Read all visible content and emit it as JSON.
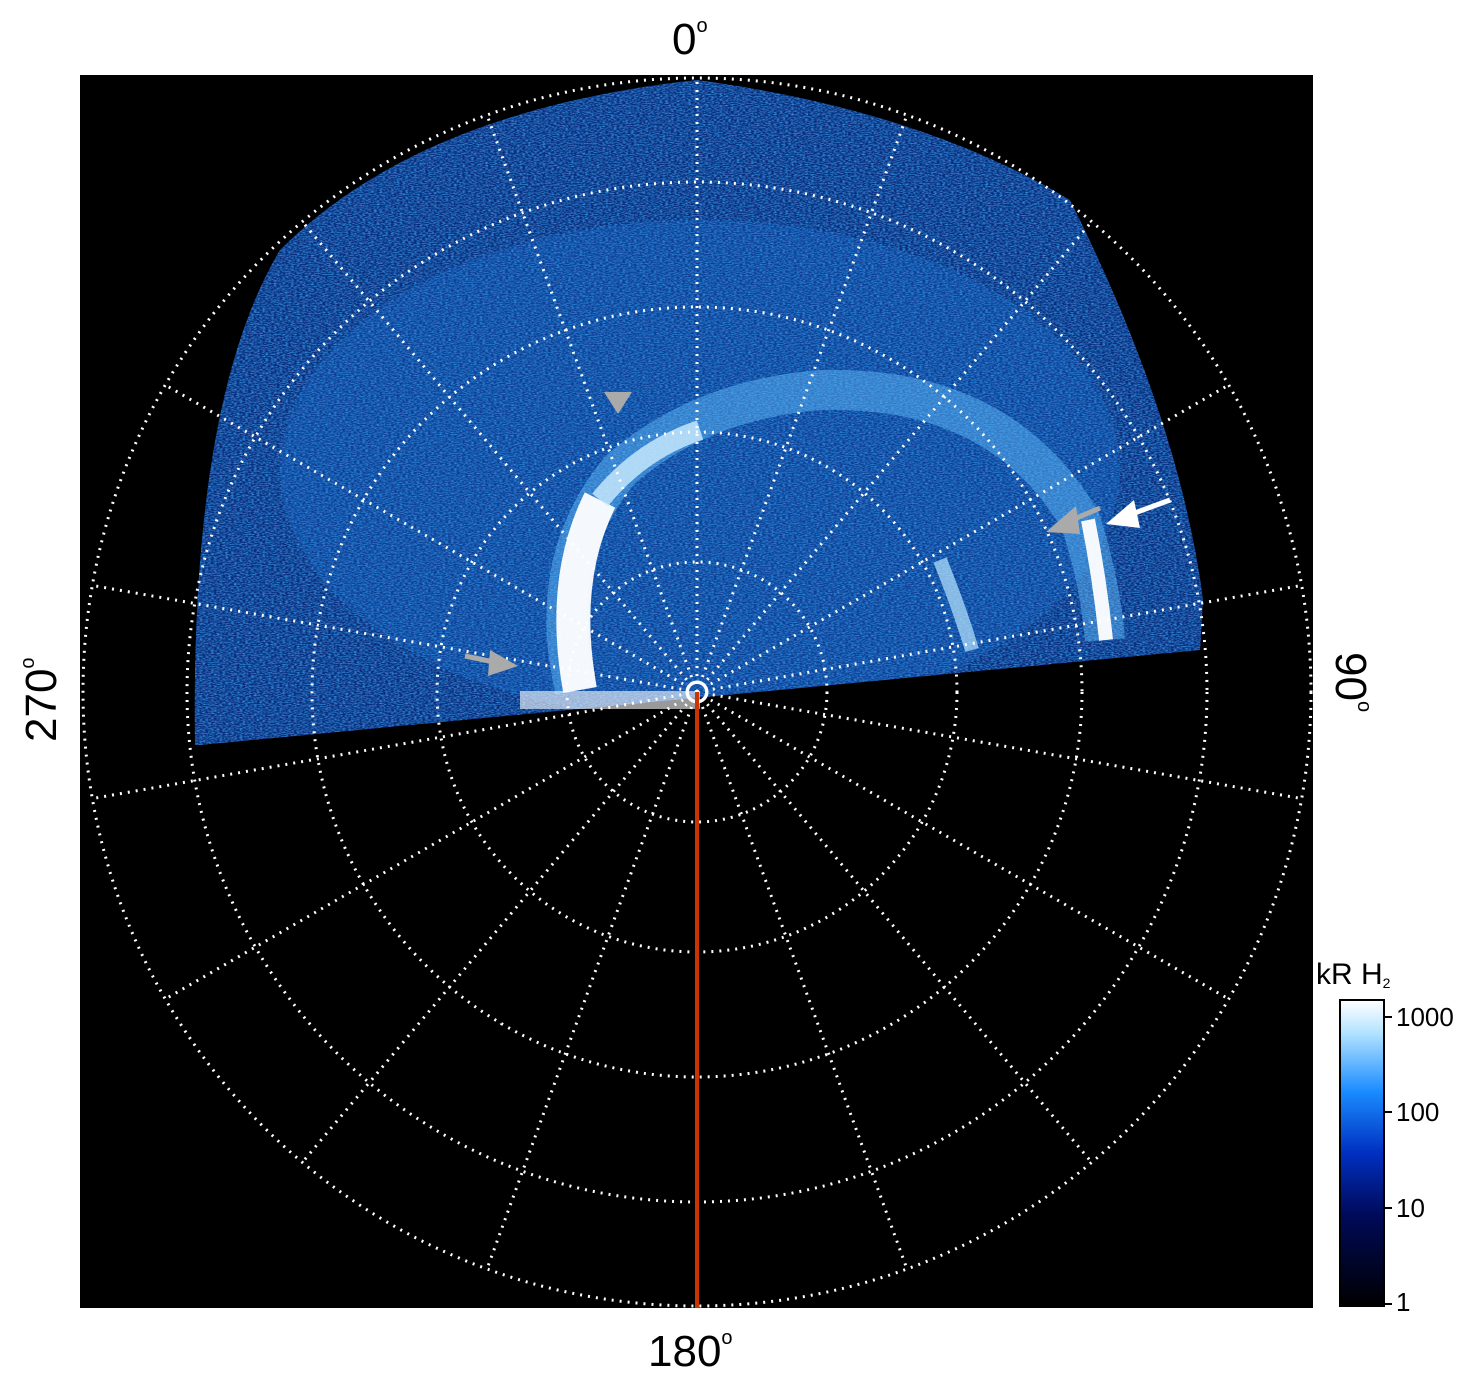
{
  "axis_labels": {
    "top": "0",
    "right": "90",
    "bottom": "180",
    "left": "270",
    "degree_symbol": "o"
  },
  "colorbar": {
    "title_main": "kR H",
    "title_sub": "2",
    "ticks": [
      "1000",
      "100",
      "10",
      "1"
    ],
    "scale": "log",
    "colors": [
      "#000000",
      "#000a5a",
      "#0030c0",
      "#1a8cff",
      "#b8e6ff",
      "#ffffff"
    ]
  },
  "colors": {
    "background": "#000000",
    "grid": "#ffffff",
    "meridian_line": "#cc3300",
    "arrow_white": "#ffffff",
    "arrow_gray": "#aaaaaa"
  }
}
